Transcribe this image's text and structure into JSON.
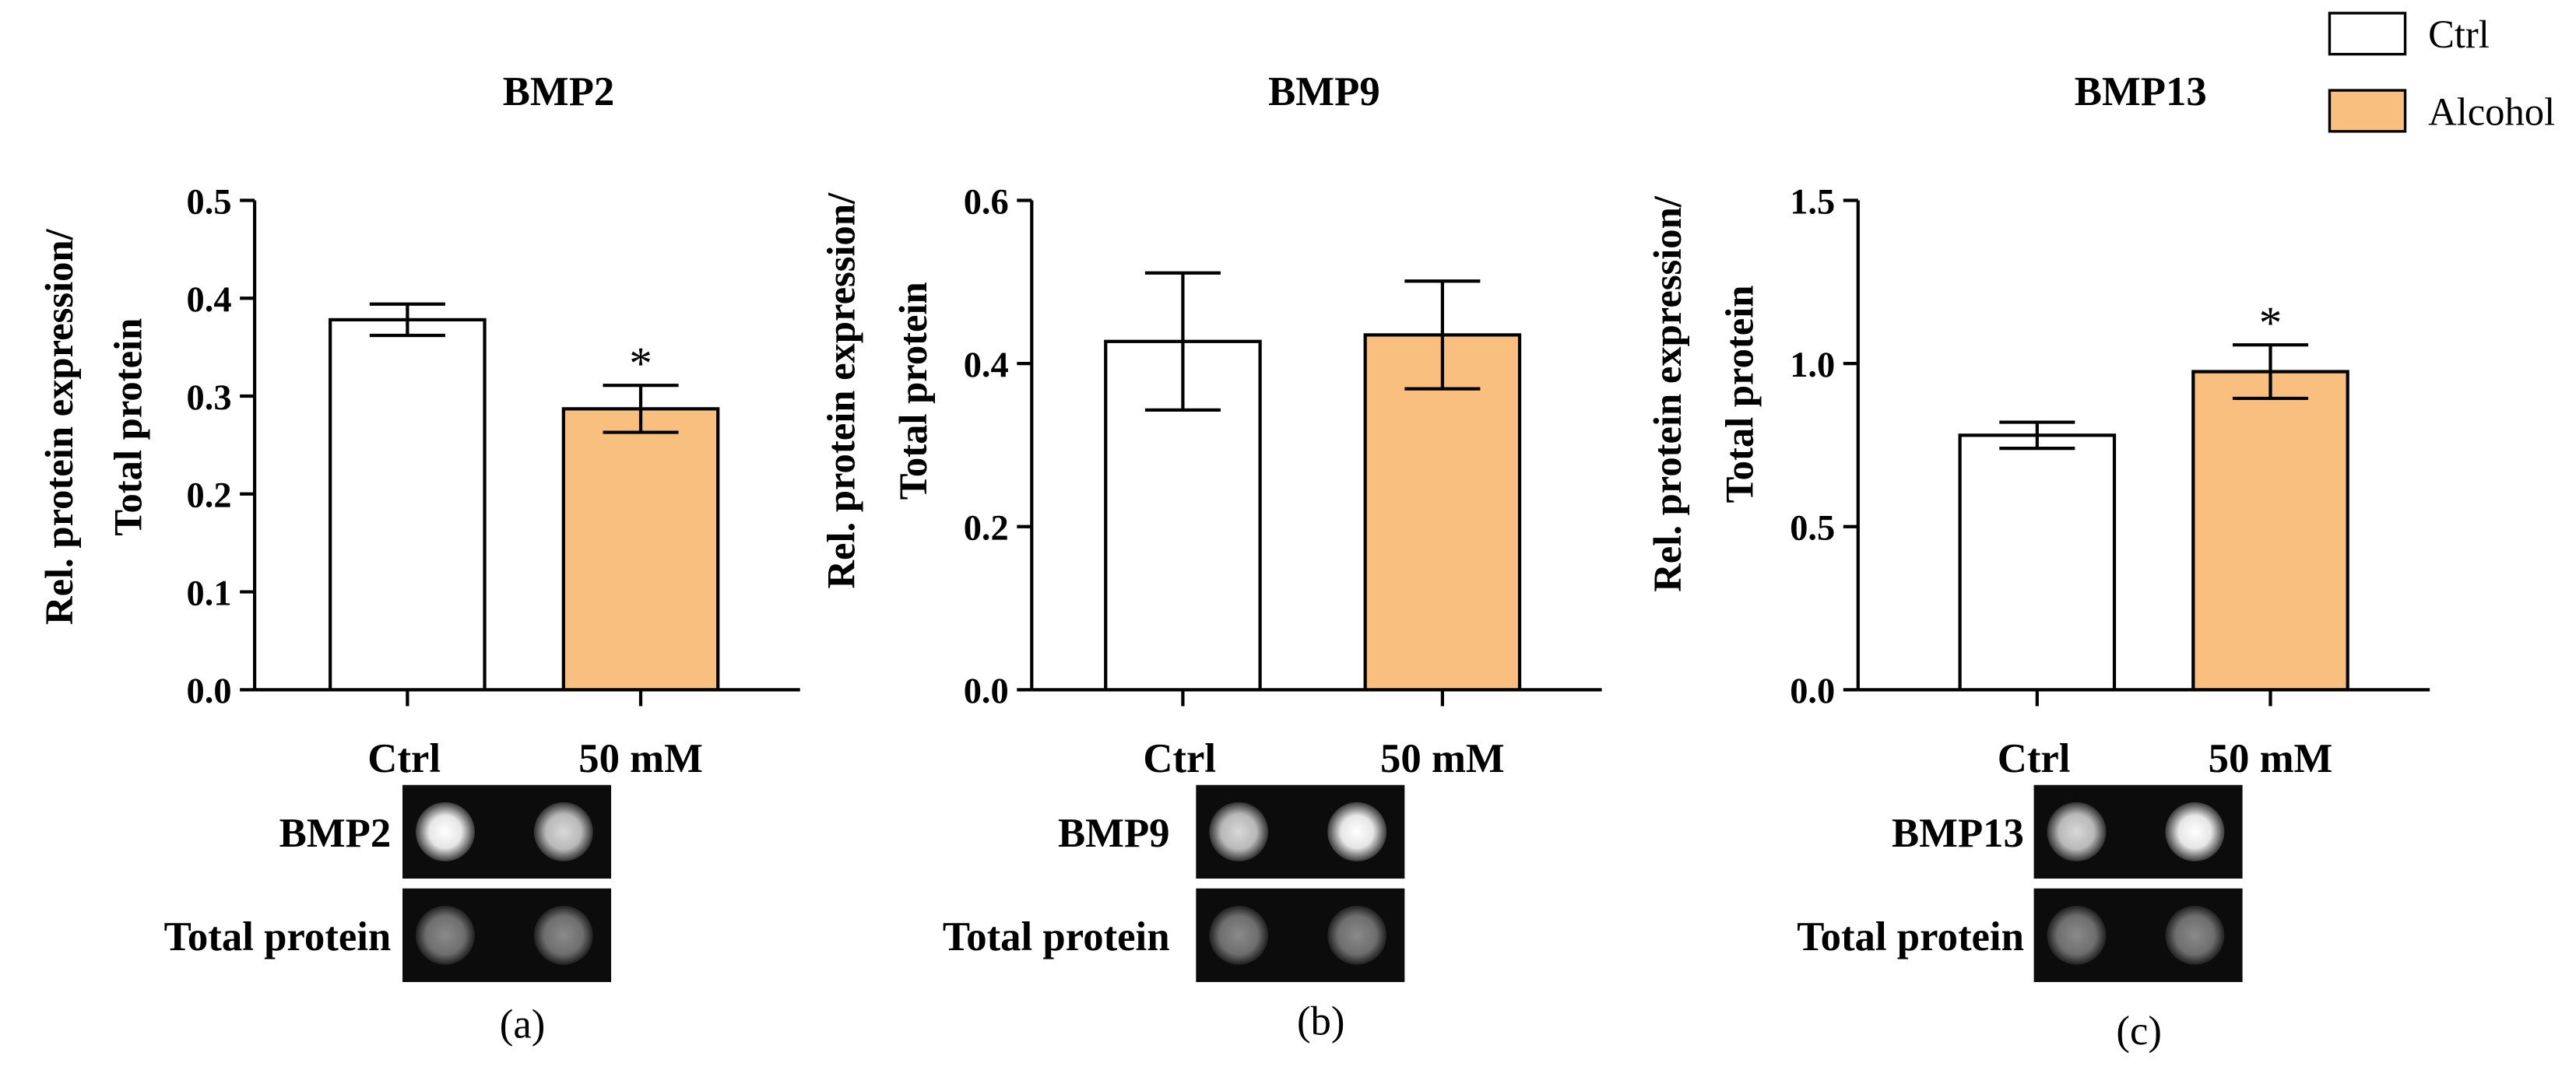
{
  "legend": {
    "items": [
      {
        "label": "Ctrl",
        "color": "#ffffff"
      },
      {
        "label": "Alcohol",
        "color": "#f9bf7f"
      }
    ]
  },
  "chart_data": [
    {
      "type": "bar",
      "panel_label": "(a)",
      "title": "BMP2",
      "ylabel_line1": "Rel. protein expression/",
      "ylabel_line2": "Total protein",
      "categories": [
        "Ctrl",
        "50 mM"
      ],
      "values": [
        0.378,
        0.287
      ],
      "errors": [
        0.016,
        0.024
      ],
      "significance": [
        "",
        "*"
      ],
      "ylim": [
        0,
        0.5
      ],
      "yticks": [
        0.0,
        0.1,
        0.2,
        0.3,
        0.4,
        0.5
      ],
      "ytick_labels": [
        "0.0",
        "0.1",
        "0.2",
        "0.3",
        "0.4",
        "0.5"
      ],
      "blot_labels": [
        "BMP2",
        "Total protein"
      ]
    },
    {
      "type": "bar",
      "panel_label": "(b)",
      "title": "BMP9",
      "ylabel_line1": "Rel. protein expression/",
      "ylabel_line2": "Total protein",
      "categories": [
        "Ctrl",
        "50 mM"
      ],
      "values": [
        0.427,
        0.435
      ],
      "errors": [
        0.084,
        0.066
      ],
      "significance": [
        "",
        ""
      ],
      "ylim": [
        0,
        0.6
      ],
      "yticks": [
        0.0,
        0.2,
        0.4,
        0.6
      ],
      "ytick_labels": [
        "0.0",
        "0.2",
        "0.4",
        "0.6"
      ],
      "blot_labels": [
        "BMP9",
        "Total protein"
      ]
    },
    {
      "type": "bar",
      "panel_label": "(c)",
      "title": "BMP13",
      "ylabel_line1": "Rel. protein expression/",
      "ylabel_line2": "Total protein",
      "categories": [
        "Ctrl",
        "50 mM"
      ],
      "values": [
        0.78,
        0.975
      ],
      "errors": [
        0.04,
        0.082
      ],
      "significance": [
        "",
        "*"
      ],
      "ylim": [
        0,
        1.5
      ],
      "yticks": [
        0.0,
        0.5,
        1.0,
        1.5
      ],
      "ytick_labels": [
        "0.0",
        "0.5",
        "1.0",
        "1.5"
      ],
      "blot_labels": [
        "BMP13",
        "Total protein"
      ]
    }
  ]
}
